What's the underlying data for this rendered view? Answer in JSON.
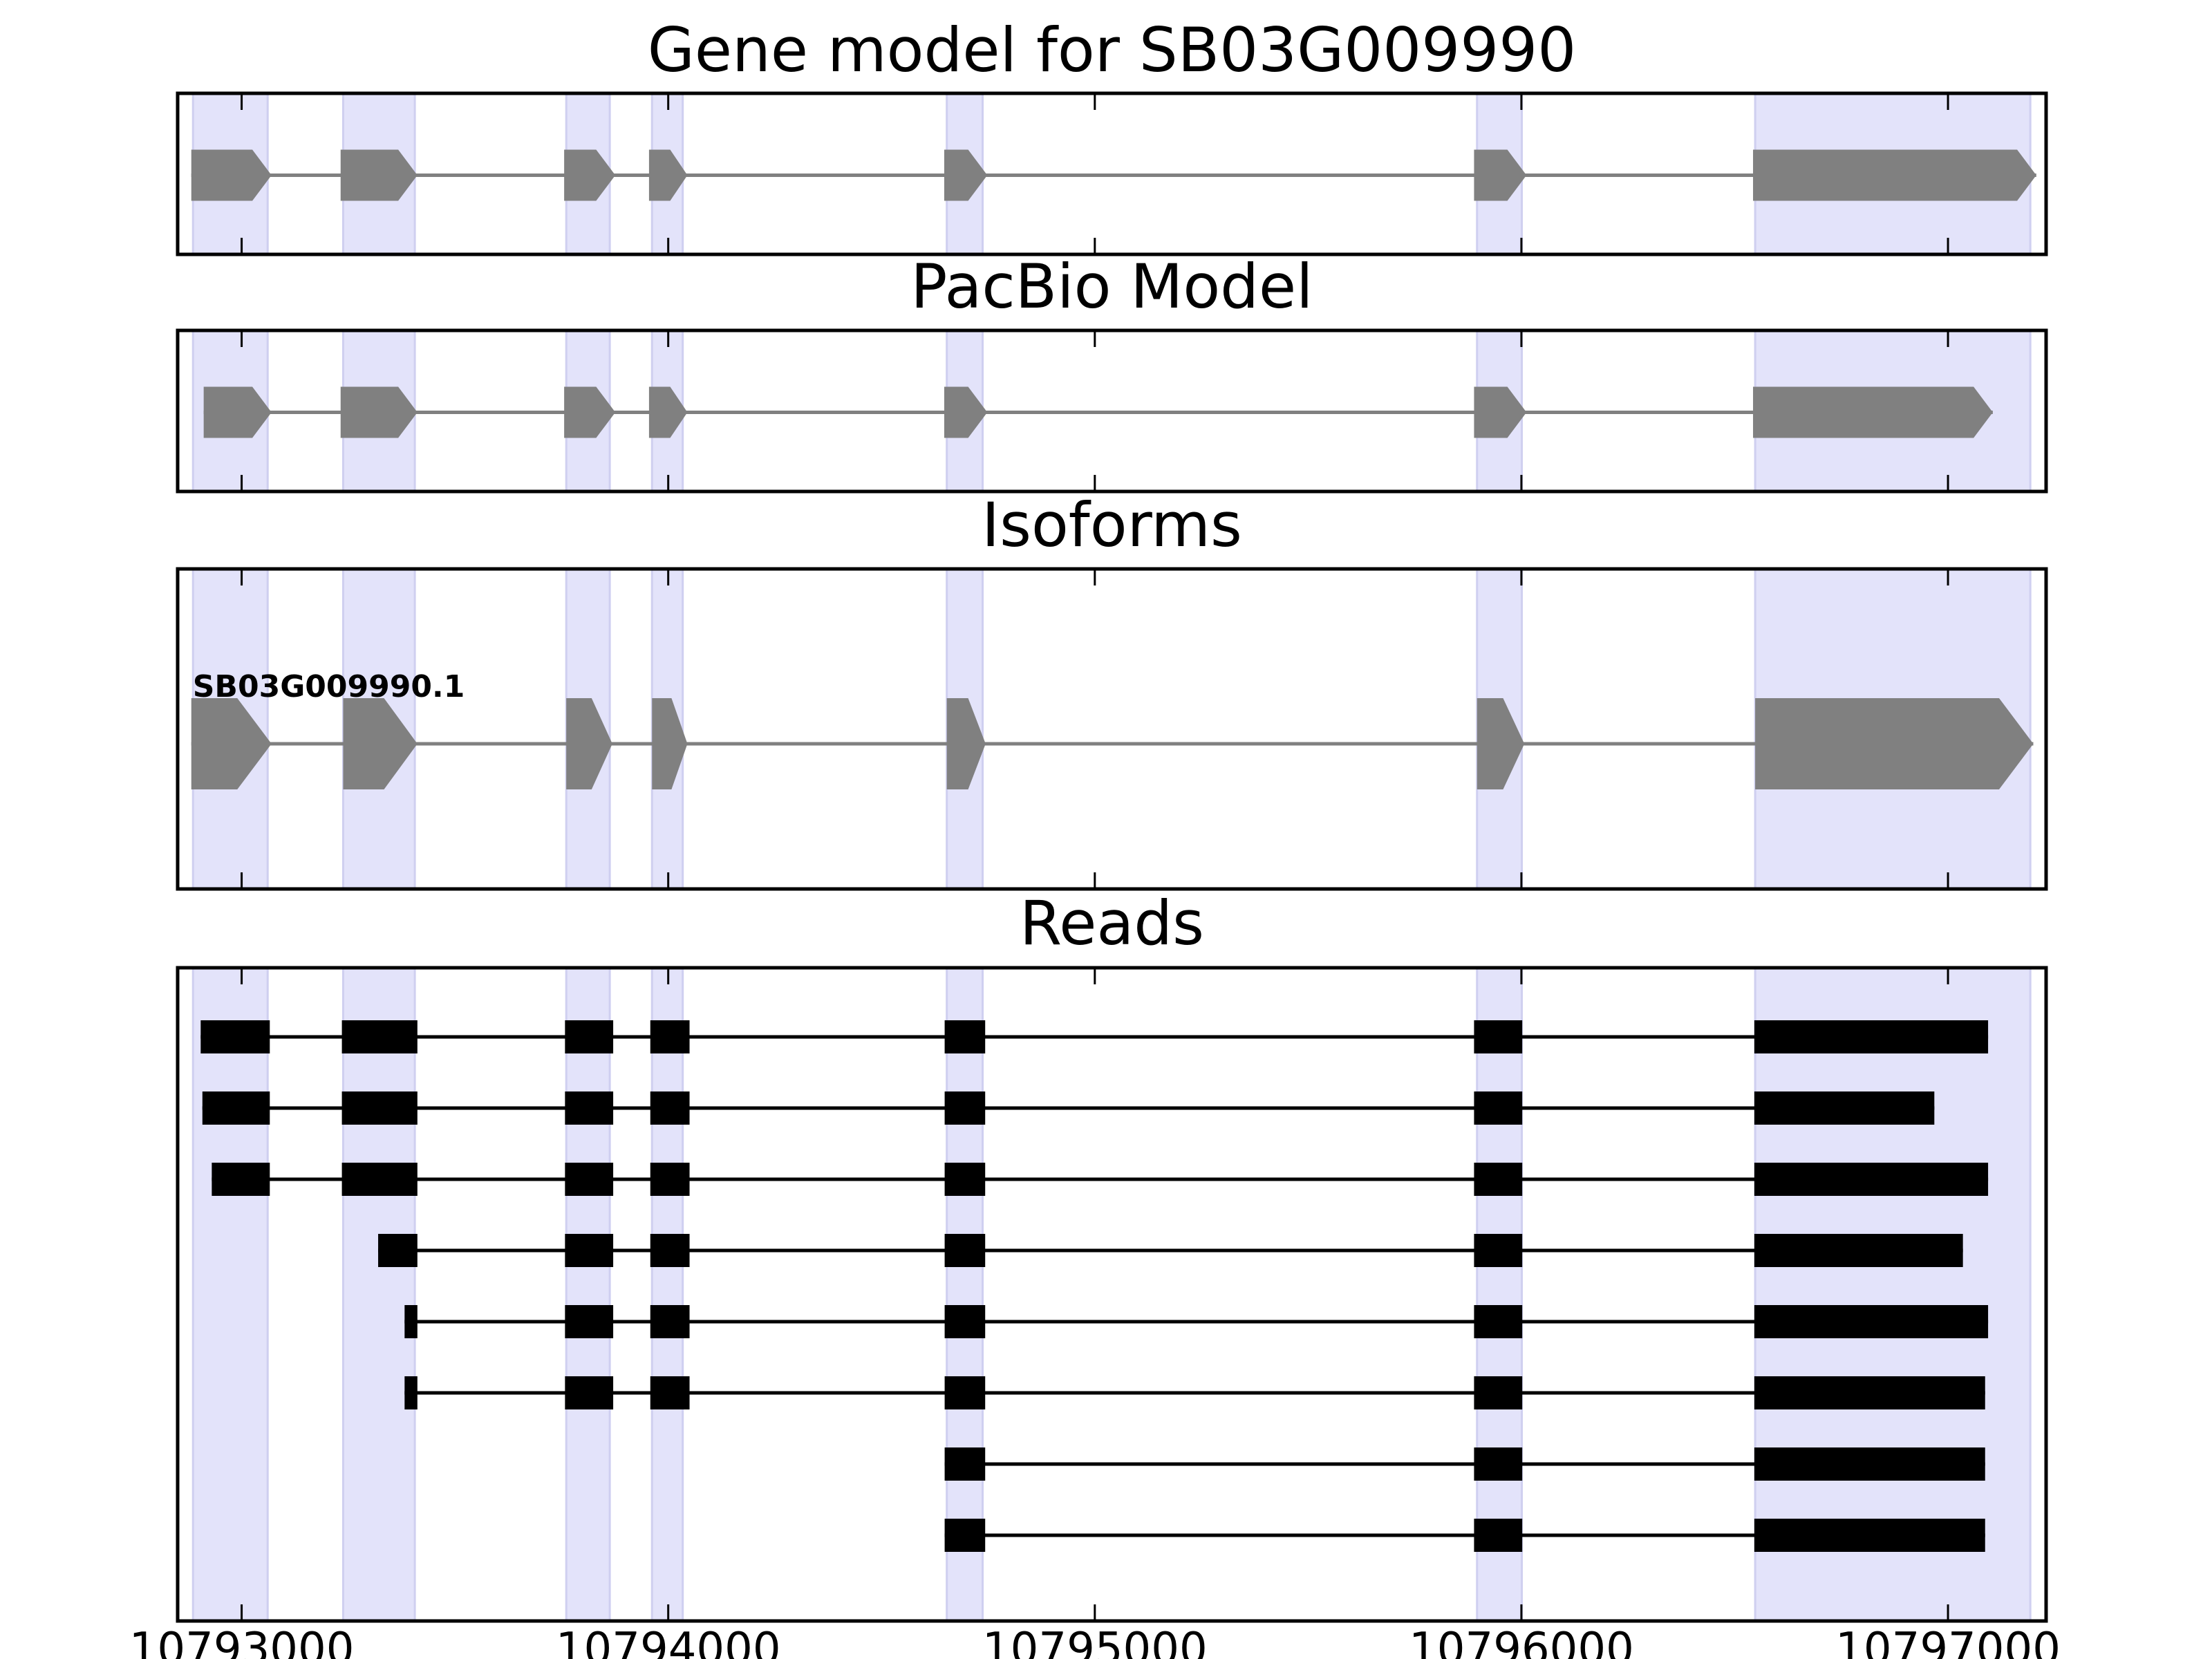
{
  "colors": {
    "exon_band": "#e3e3fa",
    "exon_band_edge": "#cfcff0",
    "model_feature": "#808080",
    "read_feature": "#000000",
    "axis": "#000000"
  },
  "chart_data": {
    "type": "gene-structure",
    "xlim": [
      10792850,
      10797230
    ],
    "xticks": [
      {
        "value": 10793000,
        "label": "10793000"
      },
      {
        "value": 10794000,
        "label": "10794000"
      },
      {
        "value": 10795000,
        "label": "10795000"
      },
      {
        "value": 10796000,
        "label": "10796000"
      },
      {
        "value": 10797000,
        "label": "10797000"
      }
    ],
    "exon_bands": [
      [
        10792886,
        10793061
      ],
      [
        10793238,
        10793406
      ],
      [
        10793761,
        10793863
      ],
      [
        10793962,
        10794034
      ],
      [
        10794653,
        10794737
      ],
      [
        10795896,
        10796001
      ],
      [
        10796548,
        10797193
      ]
    ],
    "panels": [
      {
        "name": "gene-model",
        "title": "Gene model for SB03G009990",
        "style": "model",
        "tracks": [
          {
            "exons": [
              [
                10792882,
                10793070
              ],
              [
                10793232,
                10793412
              ],
              [
                10793756,
                10793876
              ],
              [
                10793955,
                10794045
              ],
              [
                10794647,
                10794748
              ],
              [
                10795889,
                10796012
              ],
              [
                10796543,
                10797207
              ]
            ]
          }
        ]
      },
      {
        "name": "pacbio-model",
        "title": "PacBio Model",
        "style": "model",
        "tracks": [
          {
            "exons": [
              [
                10792911,
                10793070
              ],
              [
                10793232,
                10793412
              ],
              [
                10793756,
                10793876
              ],
              [
                10793955,
                10794045
              ],
              [
                10794647,
                10794748
              ],
              [
                10795889,
                10796012
              ],
              [
                10796543,
                10797105
              ]
            ]
          }
        ]
      },
      {
        "name": "isoforms",
        "title": "Isoforms",
        "style": "model",
        "tracks": [
          {
            "label": "SB03G009990.1",
            "exons": [
              [
                10792882,
                10793070
              ],
              [
                10793238,
                10793412
              ],
              [
                10793761,
                10793869
              ],
              [
                10793962,
                10794045
              ],
              [
                10794653,
                10794744
              ],
              [
                10795896,
                10796007
              ],
              [
                10796548,
                10797200
              ]
            ]
          }
        ]
      },
      {
        "name": "reads",
        "title": "Reads",
        "style": "read",
        "tracks": [
          {
            "exons": [
              [
                10792904,
                10793066
              ],
              [
                10793235,
                10793412
              ],
              [
                10793758,
                10793871
              ],
              [
                10793958,
                10794050
              ],
              [
                10794648,
                10794743
              ],
              [
                10795889,
                10796002
              ],
              [
                10796546,
                10797094
              ]
            ]
          },
          {
            "exons": [
              [
                10792908,
                10793066
              ],
              [
                10793235,
                10793412
              ],
              [
                10793758,
                10793871
              ],
              [
                10793958,
                10794050
              ],
              [
                10794648,
                10794743
              ],
              [
                10795889,
                10796002
              ],
              [
                10796546,
                10796968
              ]
            ]
          },
          {
            "exons": [
              [
                10792930,
                10793066
              ],
              [
                10793235,
                10793412
              ],
              [
                10793758,
                10793871
              ],
              [
                10793958,
                10794050
              ],
              [
                10794648,
                10794743
              ],
              [
                10795889,
                10796002
              ],
              [
                10796546,
                10797094
              ]
            ]
          },
          {
            "exons": [
              [
                10793320,
                10793412
              ],
              [
                10793758,
                10793871
              ],
              [
                10793958,
                10794050
              ],
              [
                10794648,
                10794743
              ],
              [
                10795889,
                10796002
              ],
              [
                10796546,
                10797035
              ]
            ]
          },
          {
            "exons": [
              [
                10793382,
                10793412
              ],
              [
                10793758,
                10793871
              ],
              [
                10793958,
                10794050
              ],
              [
                10794648,
                10794743
              ],
              [
                10795889,
                10796002
              ],
              [
                10796546,
                10797094
              ]
            ]
          },
          {
            "exons": [
              [
                10793382,
                10793412
              ],
              [
                10793758,
                10793871
              ],
              [
                10793958,
                10794050
              ],
              [
                10794648,
                10794743
              ],
              [
                10795889,
                10796002
              ],
              [
                10796546,
                10797087
              ]
            ]
          },
          {
            "exons": [
              [
                10794648,
                10794743
              ],
              [
                10795889,
                10796002
              ],
              [
                10796546,
                10797087
              ]
            ]
          },
          {
            "exons": [
              [
                10794648,
                10794743
              ],
              [
                10795889,
                10796002
              ],
              [
                10796546,
                10797087
              ]
            ]
          }
        ]
      }
    ]
  }
}
